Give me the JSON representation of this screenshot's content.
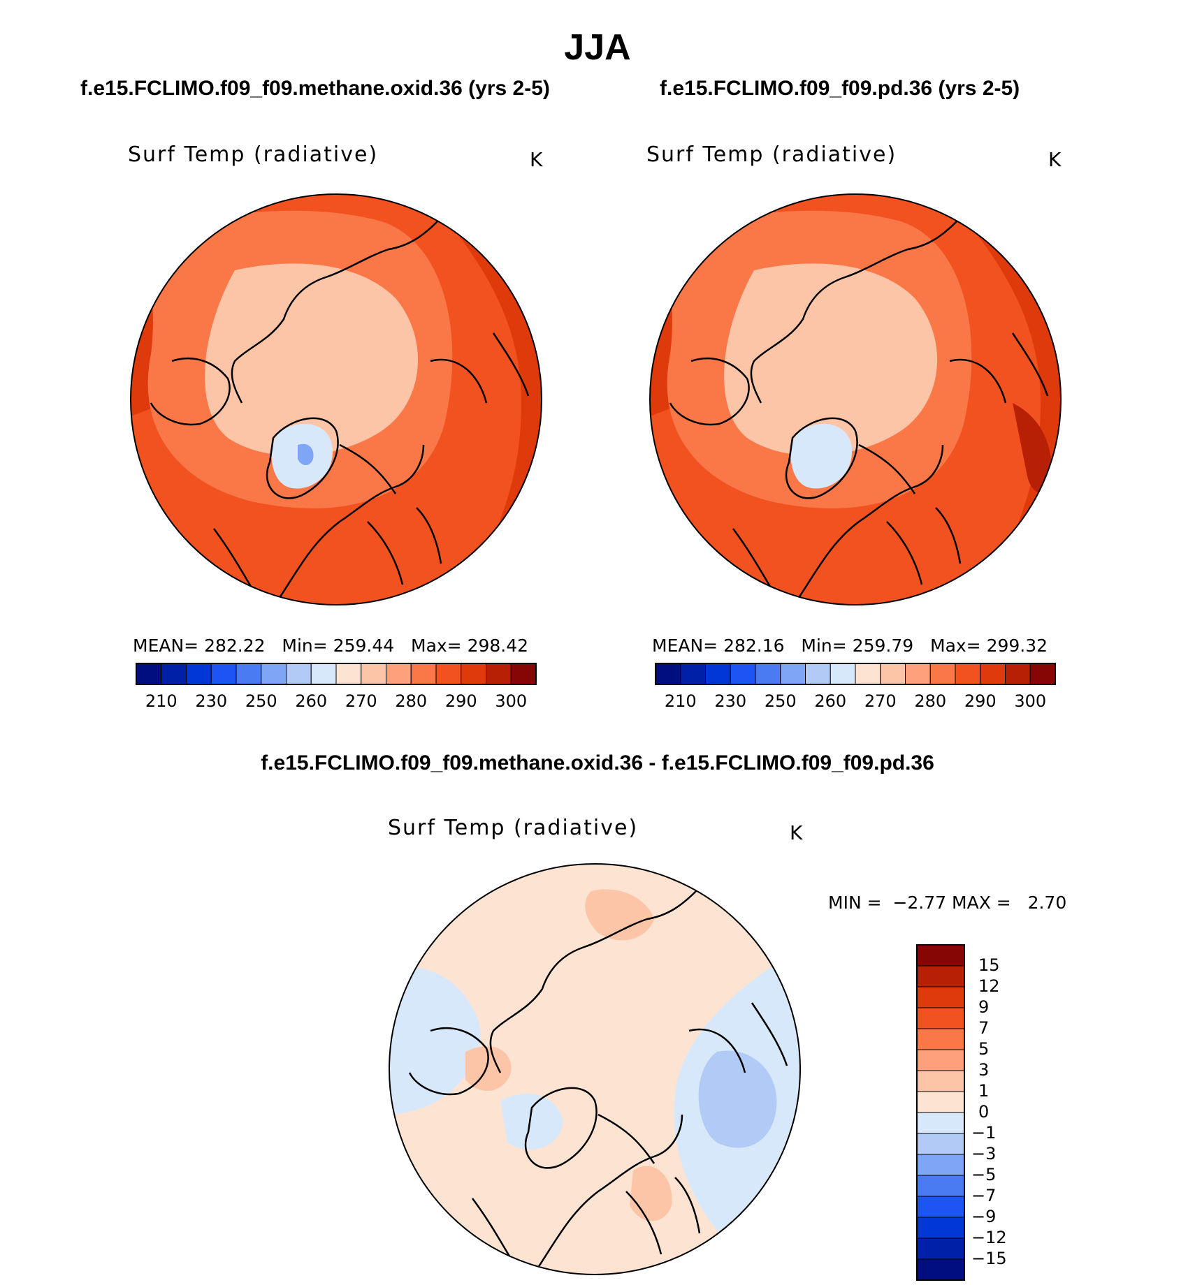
{
  "title": "JJA",
  "colors": {
    "abs_scale": [
      "#000e7e",
      "#0020a8",
      "#0037d6",
      "#1d55f5",
      "#4a7bf3",
      "#7ea5f6",
      "#b1cbf6",
      "#d8e8fb",
      "#fde4d2",
      "#fdc5a8",
      "#fca17c",
      "#fa7848",
      "#f25220",
      "#de3a0b",
      "#b82006",
      "#860505"
    ],
    "diff_scale": [
      "#000e7e",
      "#0020a8",
      "#0037d6",
      "#1d55f5",
      "#4a7bf3",
      "#7ea5f6",
      "#b1cbf6",
      "#d8e8fb",
      "#fde4d2",
      "#fdc5a8",
      "#fca17c",
      "#fa7848",
      "#f25220",
      "#de3a0b",
      "#b82006",
      "#860505"
    ]
  },
  "panels": [
    {
      "case": "f.e15.FCLIMO.f09_f09.methane.oxid.36 (yrs 2-5)",
      "variable": "Surf Temp (radiative)",
      "units": "K",
      "mean_label": "MEAN=",
      "mean": "282.22",
      "min_label": "Min=",
      "min": "259.44",
      "max_label": "Max=",
      "max": "298.42",
      "ticks": [
        "210",
        "230",
        "250",
        "260",
        "270",
        "280",
        "290",
        "300"
      ]
    },
    {
      "case": "f.e15.FCLIMO.f09_f09.pd.36 (yrs 2-5)",
      "variable": "Surf Temp (radiative)",
      "units": "K",
      "mean_label": "MEAN=",
      "mean": "282.16",
      "min_label": "Min=",
      "min": "259.79",
      "max_label": "Max=",
      "max": "299.32",
      "ticks": [
        "210",
        "230",
        "250",
        "260",
        "270",
        "280",
        "290",
        "300"
      ]
    }
  ],
  "difference": {
    "title": "f.e15.FCLIMO.f09_f09.methane.oxid.36 - f.e15.FCLIMO.f09_f09.pd.36",
    "variable": "Surf Temp (radiative)",
    "units": "K",
    "min_label": "MIN =",
    "min": "−2.77",
    "max_label": "MAX =",
    "max": "2.70",
    "ticks": [
      "15",
      "12",
      "9",
      "7",
      "5",
      "3",
      "1",
      "0",
      "−1",
      "−3",
      "−5",
      "−7",
      "−9",
      "−12",
      "−15"
    ]
  }
}
